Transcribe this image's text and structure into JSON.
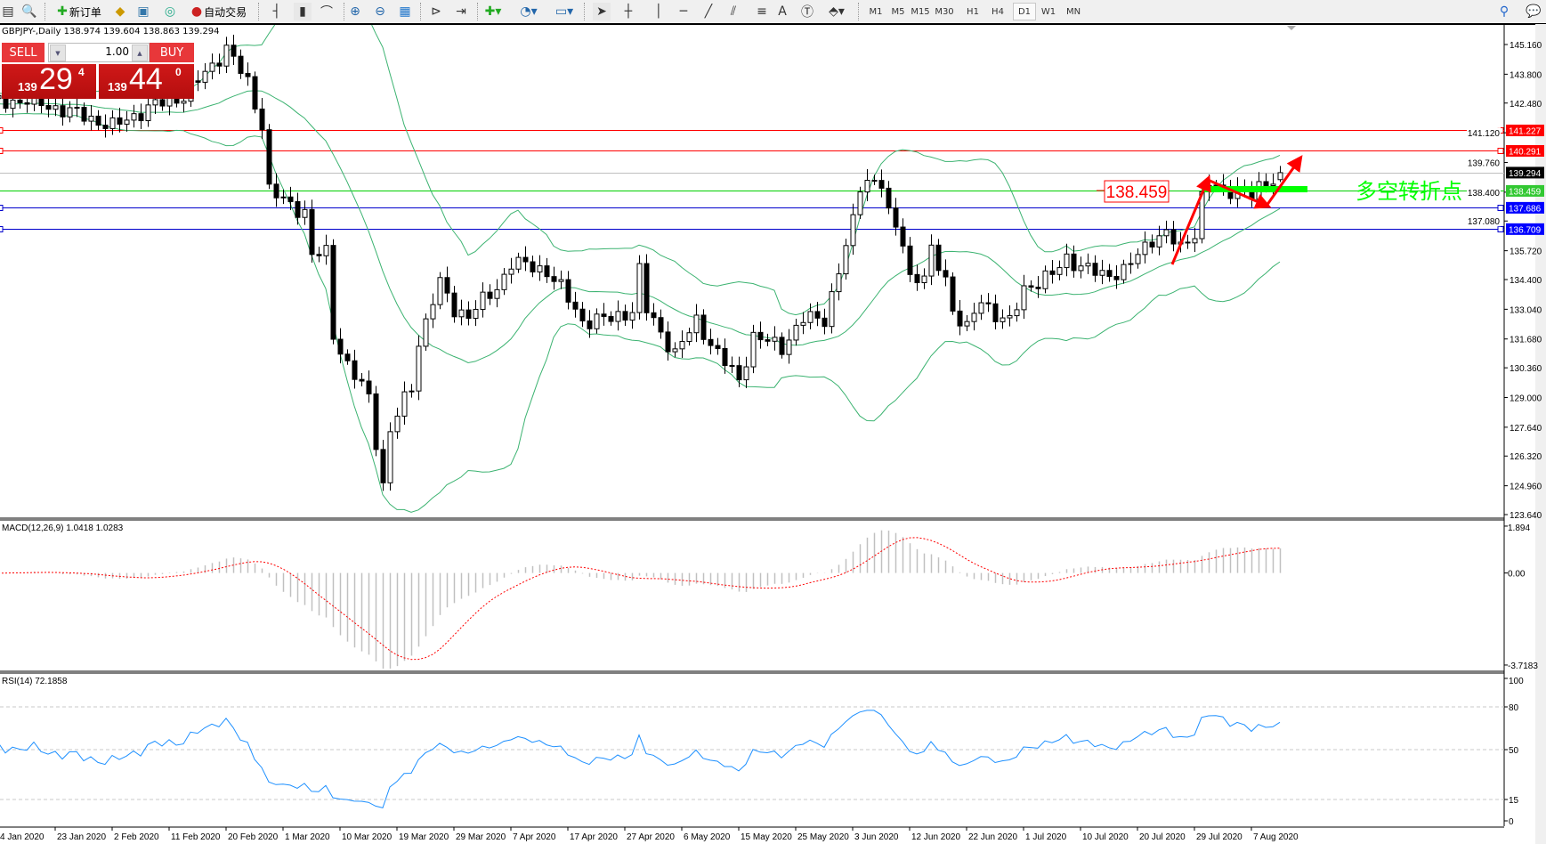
{
  "toolbar": {
    "new_order_label": "新订单",
    "auto_trading_label": "自动交易",
    "timeframes": [
      "M1",
      "M5",
      "M15",
      "M30",
      "H1",
      "H4",
      "D1",
      "W1",
      "MN"
    ],
    "active_timeframe": "D1"
  },
  "chart_header": {
    "text": "GBPJPY-,Daily  138.974 139.604 138.863 139.294"
  },
  "trade_panel": {
    "sell_label": "SELL",
    "buy_label": "BUY",
    "lot": "1.00",
    "sell_big": "29",
    "sell_small": "139",
    "sell_sup": "4",
    "buy_big": "44",
    "buy_small": "139",
    "buy_sup": "0"
  },
  "price_axis": [
    "145.160",
    "143.800",
    "142.480",
    "141.120",
    "139.760",
    "138.400",
    "137.080",
    "135.720",
    "134.400",
    "133.040",
    "131.680",
    "130.360",
    "129.000",
    "127.640",
    "126.320",
    "124.960",
    "123.640"
  ],
  "hlines": [
    {
      "value": "141.227",
      "color": "#ff0000",
      "tag": "#ff0000"
    },
    {
      "value": "140.291",
      "color": "#ff0000",
      "tag": "#ff0000"
    },
    {
      "value": "139.294",
      "color": "#c0c0c0",
      "tag": "#000000"
    },
    {
      "value": "138.459",
      "color": "#00d000",
      "tag": "#32c832"
    },
    {
      "value": "137.686",
      "color": "#0000cc",
      "tag": "#0000ff"
    },
    {
      "value": "136.709",
      "color": "#0000cc",
      "tag": "#0000ff"
    }
  ],
  "annotation": {
    "price_label": "138.459",
    "text": "多空转折点",
    "text_color": "#00ff00",
    "arrow_color": "#ff0000"
  },
  "macd": {
    "label": "MACD(12,26,9) 1.0418 1.0283",
    "axis": [
      "1.894",
      "0.00",
      "-3.7183"
    ]
  },
  "rsi": {
    "label": "RSI(14) 72.1858",
    "axis": [
      "100",
      "80",
      "50",
      "15",
      "0"
    ]
  },
  "date_axis": [
    "4 Jan 2020",
    "23 Jan 2020",
    "2 Feb 2020",
    "11 Feb 2020",
    "20 Feb 2020",
    "1 Mar 2020",
    "10 Mar 2020",
    "19 Mar 2020",
    "29 Mar 2020",
    "7 Apr 2020",
    "17 Apr 2020",
    "27 Apr 2020",
    "6 May 2020",
    "15 May 2020",
    "25 May 2020",
    "3 Jun 2020",
    "12 Jun 2020",
    "22 Jun 2020",
    "1 Jul 2020",
    "10 Jul 2020",
    "20 Jul 2020",
    "29 Jul 2020",
    "7 Aug 2020"
  ],
  "chart_data": {
    "type": "candlestick",
    "symbol": "GBPJPY-",
    "timeframe": "Daily",
    "last_bar": {
      "open": 138.974,
      "high": 139.604,
      "low": 138.863,
      "close": 139.294
    },
    "ylim": [
      123.64,
      145.16
    ],
    "indicators": [
      "Bollinger Bands(20,2)",
      "MACD(12,26,9)",
      "RSI(14)"
    ],
    "colors": {
      "bands": "#3cb371",
      "macd_hist": "#c0c0c0",
      "macd_signal": "#ff0000",
      "rsi": "#1e90ff"
    },
    "close_keypoints": [
      [
        "2020-01-01",
        142.3
      ],
      [
        "2020-01-20",
        142.6
      ],
      [
        "2020-01-28",
        142.0
      ],
      [
        "2020-02-03",
        141.4
      ],
      [
        "2020-02-10",
        142.4
      ],
      [
        "2020-02-14",
        142.8
      ],
      [
        "2020-02-19",
        144.2
      ],
      [
        "2020-02-21",
        145.0
      ],
      [
        "2020-02-25",
        143.4
      ],
      [
        "2020-02-27",
        141.5
      ],
      [
        "2020-02-28",
        138.5
      ],
      [
        "2020-03-02",
        138.0
      ],
      [
        "2020-03-05",
        137.5
      ],
      [
        "2020-03-06",
        135.5
      ],
      [
        "2020-03-09",
        135.6
      ],
      [
        "2020-03-10",
        131.9
      ],
      [
        "2020-03-12",
        130.5
      ],
      [
        "2020-03-16",
        129.0
      ],
      [
        "2020-03-18",
        125.0
      ],
      [
        "2020-03-19",
        127.5
      ],
      [
        "2020-03-20",
        128.2
      ],
      [
        "2020-03-23",
        129.5
      ],
      [
        "2020-03-24",
        131.5
      ],
      [
        "2020-03-26",
        133.5
      ],
      [
        "2020-03-27",
        134.2
      ],
      [
        "2020-03-30",
        133.0
      ],
      [
        "2020-04-01",
        132.8
      ],
      [
        "2020-04-06",
        134.0
      ],
      [
        "2020-04-08",
        135.2
      ],
      [
        "2020-04-14",
        134.8
      ],
      [
        "2020-04-16",
        134.0
      ],
      [
        "2020-04-20",
        132.5
      ],
      [
        "2020-04-24",
        132.6
      ],
      [
        "2020-04-28",
        133.0
      ],
      [
        "2020-04-29",
        134.8
      ],
      [
        "2020-04-30",
        133.0
      ],
      [
        "2020-05-05",
        131.0
      ],
      [
        "2020-05-08",
        132.5
      ],
      [
        "2020-05-12",
        131.0
      ],
      [
        "2020-05-14",
        130.2
      ],
      [
        "2020-05-15",
        129.8
      ],
      [
        "2020-05-18",
        131.8
      ],
      [
        "2020-05-22",
        131.3
      ],
      [
        "2020-05-26",
        132.6
      ],
      [
        "2020-05-29",
        132.6
      ],
      [
        "2020-06-01",
        134.8
      ],
      [
        "2020-06-03",
        137.0
      ],
      [
        "2020-06-04",
        138.7
      ],
      [
        "2020-06-05",
        139.0
      ],
      [
        "2020-06-08",
        138.8
      ],
      [
        "2020-06-09",
        137.3
      ],
      [
        "2020-06-11",
        136.2
      ],
      [
        "2020-06-12",
        134.5
      ],
      [
        "2020-06-15",
        134.5
      ],
      [
        "2020-06-16",
        135.6
      ],
      [
        "2020-06-18",
        134.5
      ],
      [
        "2020-06-19",
        133.0
      ],
      [
        "2020-06-22",
        132.1
      ],
      [
        "2020-06-24",
        133.5
      ],
      [
        "2020-06-26",
        132.8
      ],
      [
        "2020-06-29",
        132.4
      ],
      [
        "2020-07-01",
        134.0
      ],
      [
        "2020-07-06",
        134.6
      ],
      [
        "2020-07-08",
        135.4
      ],
      [
        "2020-07-10",
        135.0
      ],
      [
        "2020-07-14",
        134.6
      ],
      [
        "2020-07-17",
        134.8
      ],
      [
        "2020-07-20",
        135.5
      ],
      [
        "2020-07-22",
        136.3
      ],
      [
        "2020-07-24",
        136.5
      ],
      [
        "2020-07-27",
        135.8
      ],
      [
        "2020-07-29",
        136.6
      ],
      [
        "2020-07-30",
        138.2
      ],
      [
        "2020-07-31",
        138.8
      ],
      [
        "2020-08-03",
        138.4
      ],
      [
        "2020-08-05",
        138.6
      ],
      [
        "2020-08-07",
        138.2
      ],
      [
        "2020-08-10",
        138.8
      ],
      [
        "2020-08-12",
        139.294
      ]
    ]
  }
}
